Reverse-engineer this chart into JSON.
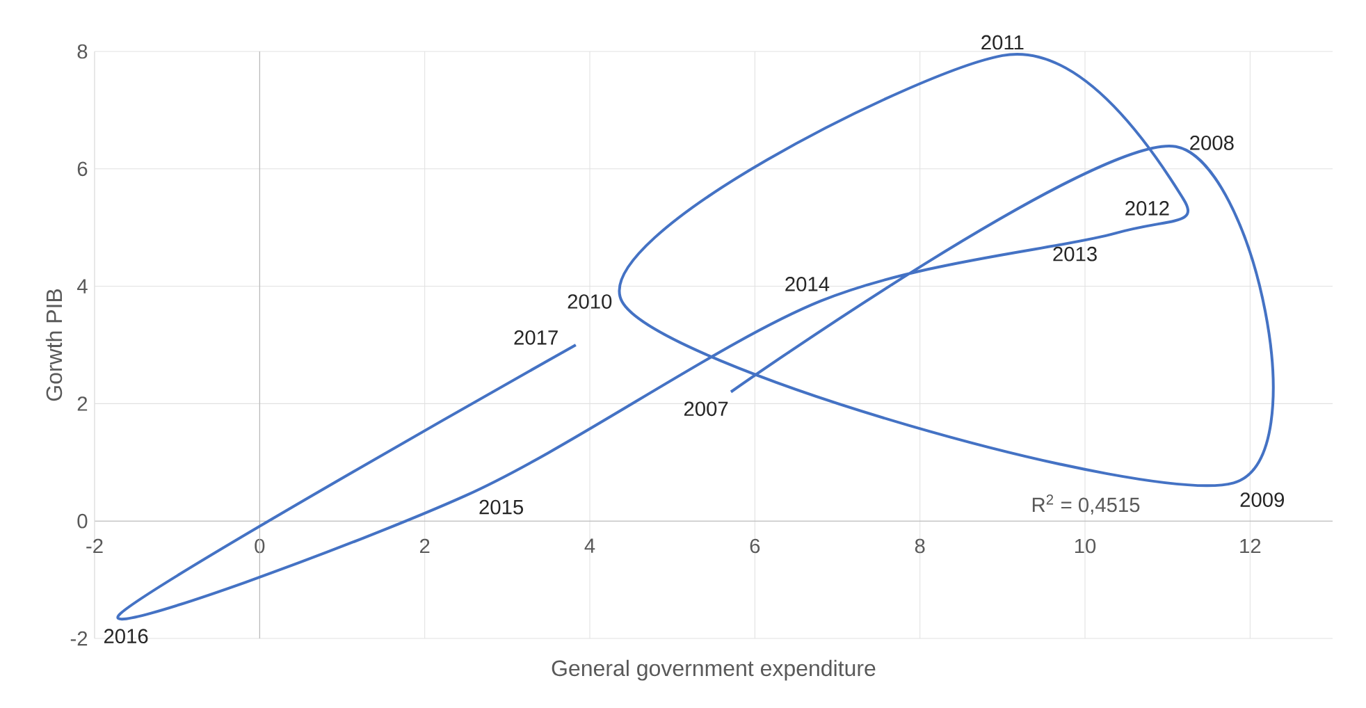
{
  "chart_data": {
    "type": "line",
    "xlabel": "General government expenditure",
    "ylabel": "Gorwth PIB",
    "series": [
      {
        "color": "#4472c4",
        "x": [
          5.71,
          11.1,
          11.8,
          4.39,
          9.0,
          11.19,
          10.36,
          6.8,
          2.49,
          -1.71,
          3.83
        ],
        "values": [
          2.2,
          6.38,
          0.65,
          3.74,
          7.93,
          5.49,
          4.9,
          3.75,
          0.43,
          -1.61,
          3.0
        ]
      }
    ],
    "xlim": [
      -2,
      13
    ],
    "ylim": [
      -2,
      8
    ],
    "xticks": [
      -2,
      0,
      2,
      4,
      6,
      8,
      10,
      12
    ],
    "yticks": [
      -2,
      0,
      2,
      4,
      6,
      8
    ],
    "grid": true,
    "marker": "none",
    "line_style": "solid",
    "annotations": [
      {
        "text": "2007",
        "x": 5.71,
        "y": 2.2
      },
      {
        "text": "2008",
        "x": 11.1,
        "y": 6.38
      },
      {
        "text": "2009",
        "x": 11.8,
        "y": 0.65
      },
      {
        "text": "2010",
        "x": 4.39,
        "y": 3.74
      },
      {
        "text": "2011",
        "x": 9.0,
        "y": 7.93
      },
      {
        "text": "2012",
        "x": 11.19,
        "y": 5.49
      },
      {
        "text": "2013",
        "x": 10.36,
        "y": 4.9
      },
      {
        "text": "2014",
        "x": 6.8,
        "y": 3.75
      },
      {
        "text": "2015",
        "x": 2.49,
        "y": 0.43
      },
      {
        "text": "2016",
        "x": -1.71,
        "y": -1.61
      },
      {
        "text": "2017",
        "x": 3.83,
        "y": 3.0
      },
      "R$^{2}$ = 0,4515"
    ]
  }
}
